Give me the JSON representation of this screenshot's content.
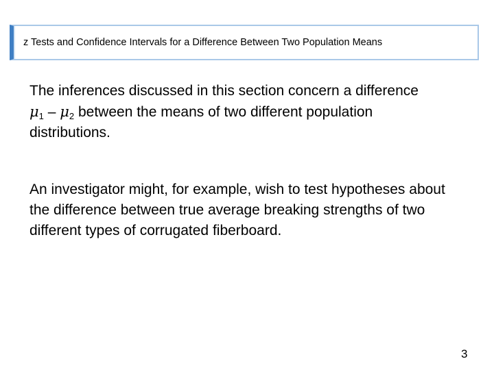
{
  "header": {
    "title": "z Tests and Confidence Intervals for a Difference Between Two Population Means"
  },
  "paragraphs": [
    {
      "before": "The inferences discussed in this section concern a difference ",
      "symbol1": "μ",
      "sub1": "1",
      "operator": " – ",
      "symbol2": "μ",
      "sub2": "2",
      "after": " between the means of two different population distributions."
    },
    {
      "text": "An investigator might, for example, wish to test hypotheses about the difference between true average breaking strengths of two different types of corrugated fiberboard."
    }
  ],
  "page_number": "3"
}
